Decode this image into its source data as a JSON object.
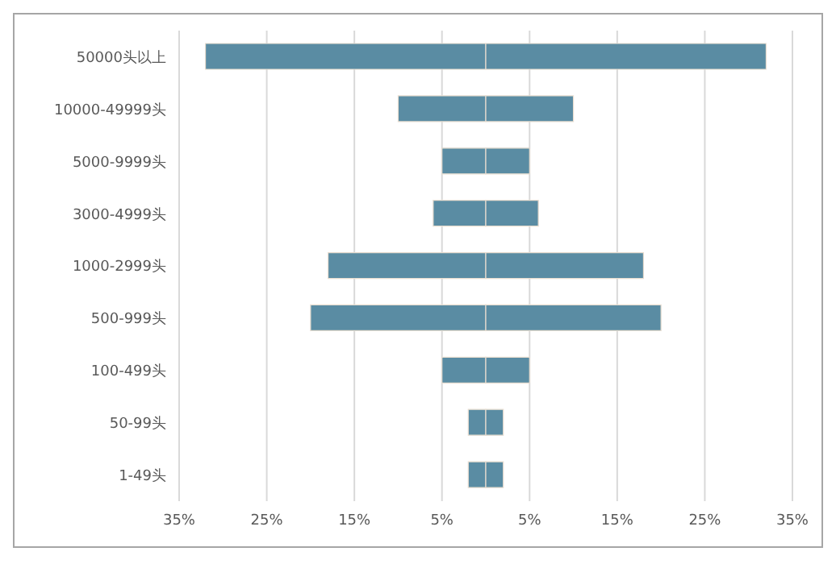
{
  "chart_data": {
    "type": "bar",
    "orientation": "horizontal",
    "stacked": true,
    "categories": [
      "50000头以上",
      "10000-49999头",
      "5000-9999头",
      "3000-4999头",
      "1000-2999头",
      "500-999头",
      "100-499头",
      "50-99头",
      "1-49头"
    ],
    "series": [
      {
        "color": "#5a8ca3",
        "values": [
          -32,
          -10,
          -5,
          -6,
          -18,
          -20,
          -5,
          -2,
          -2
        ]
      },
      {
        "color": "#5a8ca3",
        "values": [
          32,
          10,
          5,
          6,
          18,
          20,
          5,
          2,
          2
        ]
      }
    ],
    "xlim": [
      -35,
      35
    ],
    "xticks": [
      {
        "value": -35,
        "label": "35%"
      },
      {
        "value": -25,
        "label": "25%"
      },
      {
        "value": -15,
        "label": "15%"
      },
      {
        "value": -5,
        "label": "5%"
      },
      {
        "value": 5,
        "label": "5%"
      },
      {
        "value": 15,
        "label": "15%"
      },
      {
        "value": 25,
        "label": "25%"
      },
      {
        "value": 35,
        "label": "35%"
      }
    ],
    "grid": "x",
    "legend": false
  }
}
